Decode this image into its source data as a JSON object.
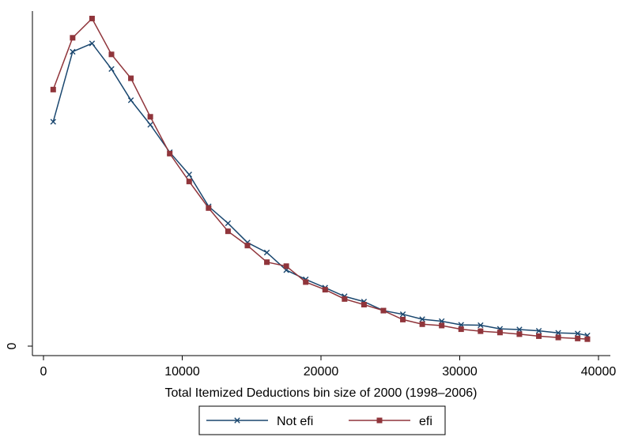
{
  "chart_data": {
    "type": "line",
    "title": "",
    "xlabel": "Total Itemized Deductions bin size of 2000 (1998–2006)",
    "ylabel": "",
    "xlim": [
      0,
      40000
    ],
    "ylim": [
      0,
      1.0
    ],
    "x_ticks": [
      0,
      10000,
      20000,
      30000,
      40000
    ],
    "x_tick_labels": [
      "0",
      "10000",
      "20000",
      "30000",
      "40000"
    ],
    "y_ticks": [
      0
    ],
    "y_tick_labels": [
      "0"
    ],
    "grid": false,
    "legend_position": "bottom",
    "x": [
      700,
      2100,
      3500,
      4900,
      6300,
      7700,
      9100,
      10500,
      11900,
      13300,
      14700,
      16100,
      17500,
      18900,
      20300,
      21700,
      23100,
      24500,
      25900,
      27300,
      28700,
      30100,
      31500,
      32900,
      34300,
      35700,
      37100,
      38500,
      39200
    ],
    "series": [
      {
        "name": "Not efi",
        "color": "#1a476f",
        "marker": "x",
        "values": [
          0.676,
          0.887,
          0.912,
          0.835,
          0.741,
          0.667,
          0.584,
          0.517,
          0.421,
          0.37,
          0.312,
          0.282,
          0.229,
          0.201,
          0.176,
          0.15,
          0.134,
          0.107,
          0.096,
          0.081,
          0.075,
          0.064,
          0.063,
          0.052,
          0.05,
          0.046,
          0.04,
          0.038,
          0.032
        ]
      },
      {
        "name": "efi",
        "color": "#90353b",
        "marker": "square",
        "values": [
          0.773,
          0.929,
          0.987,
          0.879,
          0.807,
          0.691,
          0.58,
          0.496,
          0.416,
          0.346,
          0.303,
          0.253,
          0.241,
          0.193,
          0.17,
          0.142,
          0.125,
          0.107,
          0.08,
          0.066,
          0.062,
          0.051,
          0.045,
          0.041,
          0.036,
          0.03,
          0.026,
          0.023,
          0.021
        ]
      }
    ]
  }
}
